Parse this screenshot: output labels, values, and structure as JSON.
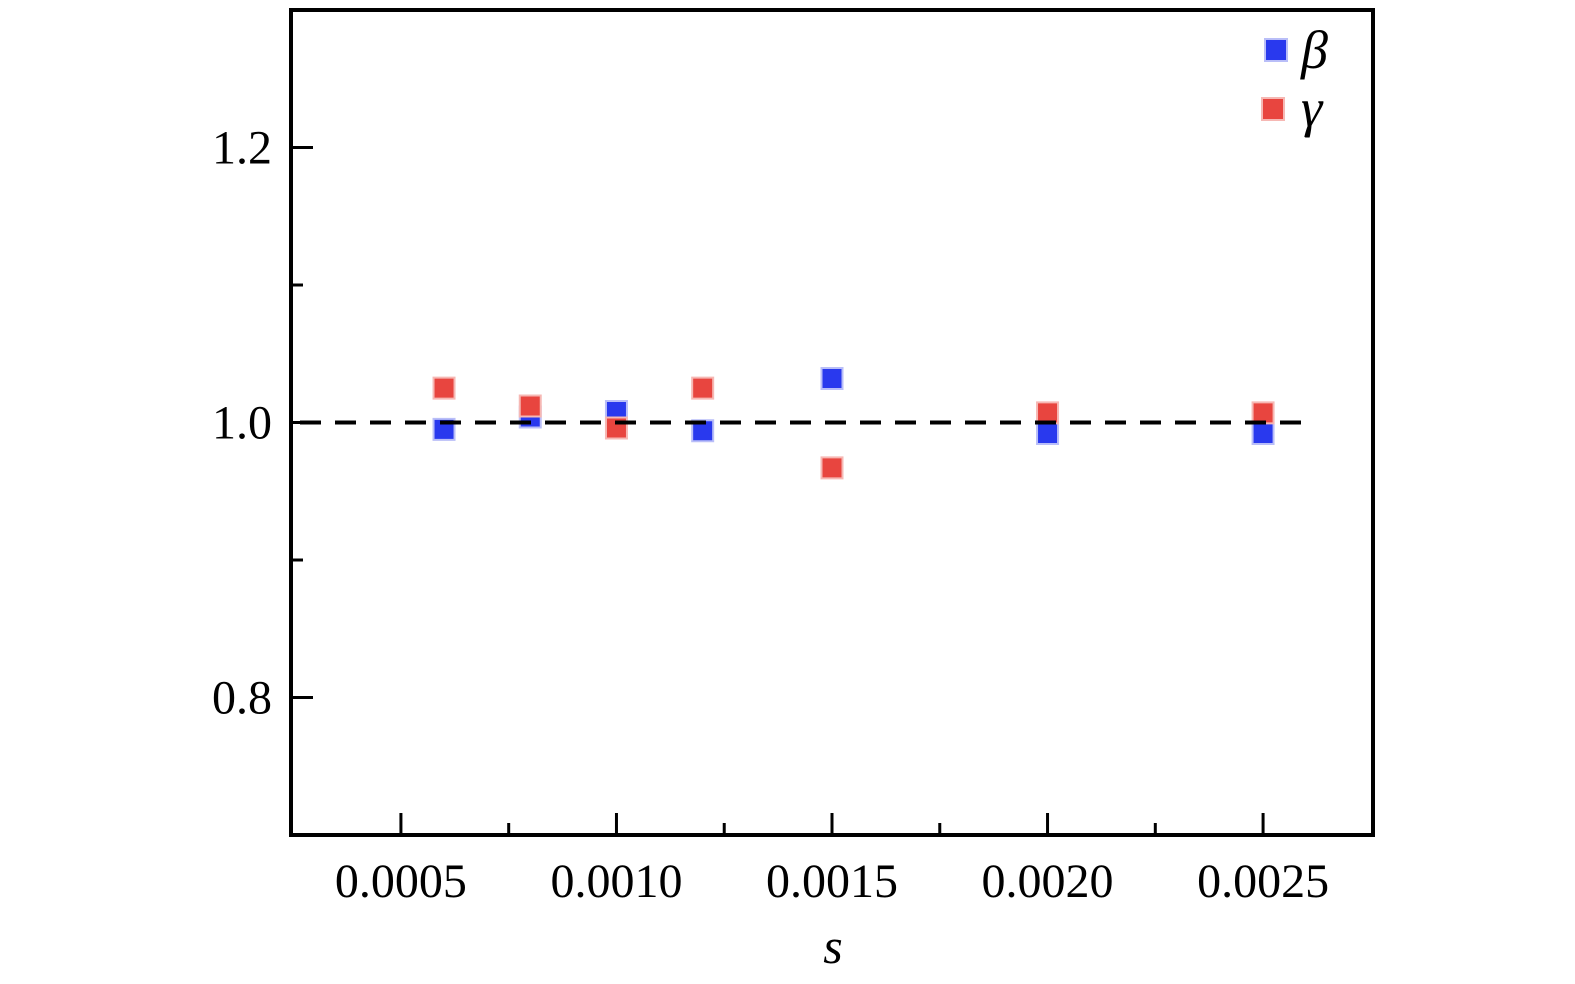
{
  "chart_data": {
    "type": "scatter",
    "title": "",
    "xlabel": "s",
    "ylabel": "",
    "xlim": [
      0.000245,
      0.002755
    ],
    "ylim": [
      0.7,
      1.3
    ],
    "grid": false,
    "legend_position": "top-right-inside",
    "x_major_ticks": [
      0.0005,
      0.001,
      0.0015,
      0.002,
      0.0025
    ],
    "x_major_tick_labels": [
      "0.0005",
      "0.0010",
      "0.0015",
      "0.0020",
      "0.0025"
    ],
    "x_minor_ticks": [
      0.00075,
      0.00125,
      0.00175,
      0.00225
    ],
    "y_major_ticks": [
      0.8,
      1.0,
      1.2
    ],
    "y_major_tick_labels": [
      "0.8",
      "1.0",
      "1.2"
    ],
    "y_minor_ticks": [
      0.9,
      1.1
    ],
    "reference_line": {
      "y": 1.0,
      "style": "dashed",
      "color": "#000000"
    },
    "series": [
      {
        "name": "β",
        "marker": "square",
        "color": "#2939ee",
        "edge_color": "#b9bef8",
        "x": [
          0.0006,
          0.0008,
          0.001,
          0.0012,
          0.0015,
          0.002,
          0.0025
        ],
        "y": [
          0.995,
          1.004,
          1.008,
          0.994,
          1.032,
          0.992,
          0.992
        ]
      },
      {
        "name": "γ",
        "marker": "square",
        "color": "#e8453f",
        "edge_color": "#f6b8b4",
        "x": [
          0.0006,
          0.0008,
          0.001,
          0.0012,
          0.0015,
          0.002,
          0.0025
        ],
        "y": [
          1.025,
          1.012,
          0.996,
          1.025,
          0.967,
          1.007,
          1.007
        ]
      }
    ]
  },
  "colors": {
    "frame": "#000000",
    "background": "#ffffff",
    "beta": "#2939ee",
    "gamma": "#e8453f"
  }
}
